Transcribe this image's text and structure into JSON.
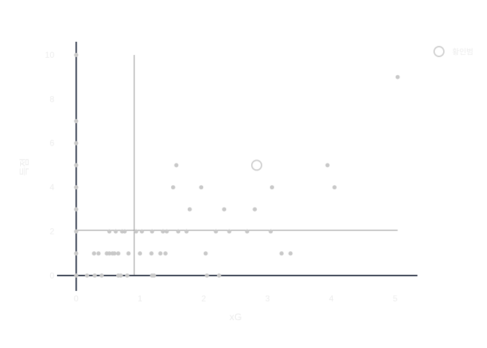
{
  "chart_data": {
    "type": "scatter",
    "xlabel": "xG",
    "ylabel": "득점",
    "xlim": [
      -0.3,
      5.35
    ],
    "ylim": [
      -0.7,
      10.6
    ],
    "xticks": [
      0,
      1,
      2,
      3,
      4,
      5
    ],
    "yticks": [
      0,
      2,
      4,
      6,
      8,
      10
    ],
    "grid": false,
    "legend_position": "top-right",
    "reference_lines": {
      "x_mean": 0.91,
      "y_mean": 2.05
    },
    "highlight": {
      "name": "황인범",
      "x": 2.83,
      "y": 5
    },
    "points": [
      [
        0,
        0
      ],
      [
        0,
        1
      ],
      [
        0,
        2
      ],
      [
        0,
        3
      ],
      [
        0,
        4
      ],
      [
        0,
        5
      ],
      [
        0,
        6
      ],
      [
        0,
        7
      ],
      [
        0,
        10
      ],
      [
        0.17,
        0
      ],
      [
        0.29,
        0
      ],
      [
        0.4,
        0
      ],
      [
        0.66,
        0
      ],
      [
        0.7,
        0
      ],
      [
        0.8,
        0
      ],
      [
        1.19,
        0
      ],
      [
        1.22,
        0
      ],
      [
        2.05,
        0
      ],
      [
        2.24,
        0
      ],
      [
        0.28,
        1
      ],
      [
        0.35,
        1
      ],
      [
        0.48,
        1
      ],
      [
        0.52,
        1
      ],
      [
        0.57,
        1
      ],
      [
        0.6,
        1
      ],
      [
        0.66,
        1
      ],
      [
        0.82,
        1
      ],
      [
        1.0,
        1
      ],
      [
        1.18,
        1
      ],
      [
        1.32,
        1
      ],
      [
        1.4,
        1
      ],
      [
        2.03,
        1
      ],
      [
        3.22,
        1
      ],
      [
        3.36,
        1
      ],
      [
        0.52,
        2
      ],
      [
        0.62,
        2
      ],
      [
        0.72,
        2
      ],
      [
        0.76,
        2
      ],
      [
        0.94,
        2
      ],
      [
        1.03,
        2
      ],
      [
        1.19,
        2
      ],
      [
        1.36,
        2
      ],
      [
        1.42,
        2
      ],
      [
        1.6,
        2
      ],
      [
        1.73,
        2
      ],
      [
        2.19,
        2
      ],
      [
        2.4,
        2
      ],
      [
        2.68,
        2
      ],
      [
        3.05,
        2
      ],
      [
        1.78,
        3
      ],
      [
        2.32,
        3
      ],
      [
        2.8,
        3
      ],
      [
        1.52,
        4
      ],
      [
        1.96,
        4
      ],
      [
        3.07,
        4
      ],
      [
        4.05,
        4
      ],
      [
        1.57,
        5
      ],
      [
        3.94,
        5
      ],
      [
        5.04,
        9
      ]
    ]
  }
}
